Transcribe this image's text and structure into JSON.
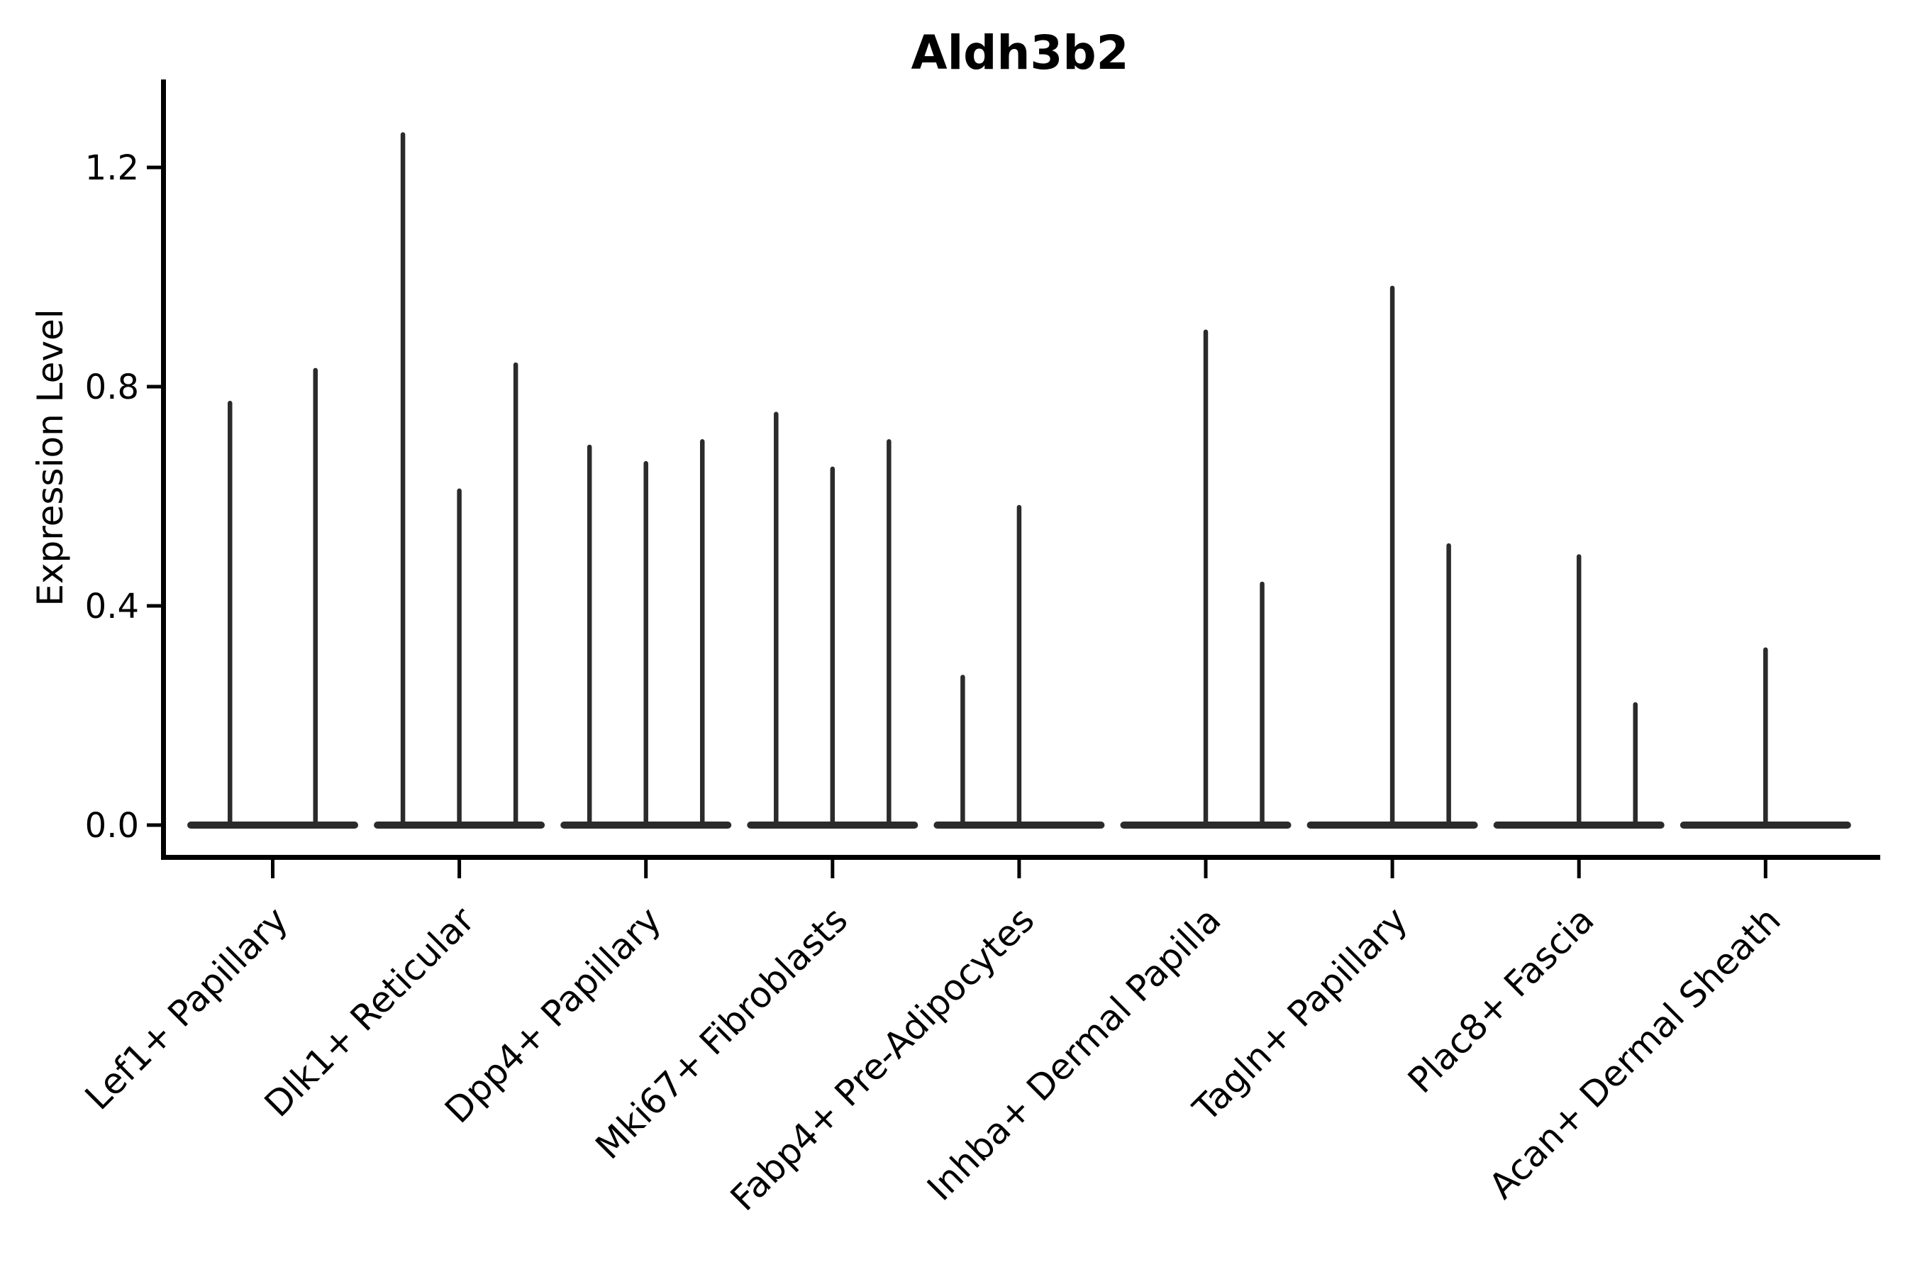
{
  "chart_data": {
    "type": "violin",
    "title": "Aldh3b2",
    "ylabel": "Expression Level",
    "xlabel": "",
    "legend": "none",
    "grid": false,
    "x_tick_rotation": 45,
    "ylim": [
      0.0,
      1.31
    ],
    "y_ticks": [
      0.0,
      0.4,
      0.8,
      1.2
    ],
    "y_tick_labels": [
      "0.0",
      "0.4",
      "0.8",
      "1.2"
    ],
    "ink_color": "#2b2b2b",
    "background_color": "#ffffff",
    "description": "Violin plot of Aldh3b2 expression; each category shows flat zero-density violins with thin spikes rising to the maximum expression of each sub-violin.",
    "categories": [
      {
        "label": "Lef1+ Papillary",
        "spikes": [
          {
            "pos": 0.25,
            "max": 0.77
          },
          {
            "pos": 0.75,
            "max": 0.83
          }
        ]
      },
      {
        "label": "Dlk1+ Reticular",
        "spikes": [
          {
            "pos": 0.17,
            "max": 1.26
          },
          {
            "pos": 0.5,
            "max": 0.61
          },
          {
            "pos": 0.83,
            "max": 0.84
          }
        ]
      },
      {
        "label": "Dpp4+ Papillary",
        "spikes": [
          {
            "pos": 0.17,
            "max": 0.69
          },
          {
            "pos": 0.5,
            "max": 0.66
          },
          {
            "pos": 0.83,
            "max": 0.7
          }
        ]
      },
      {
        "label": "Mki67+ Fibroblasts",
        "spikes": [
          {
            "pos": 0.17,
            "max": 0.75
          },
          {
            "pos": 0.5,
            "max": 0.65
          },
          {
            "pos": 0.83,
            "max": 0.7
          }
        ]
      },
      {
        "label": "Fabp4+ Pre-Adipocytes",
        "spikes": [
          {
            "pos": 0.17,
            "max": 0.27
          },
          {
            "pos": 0.5,
            "max": 0.58
          }
        ]
      },
      {
        "label": "Inhba+ Dermal Papilla",
        "spikes": [
          {
            "pos": 0.5,
            "max": 0.9
          },
          {
            "pos": 0.83,
            "max": 0.44
          }
        ]
      },
      {
        "label": "Tagln+ Papillary",
        "spikes": [
          {
            "pos": 0.5,
            "max": 0.98
          },
          {
            "pos": 0.83,
            "max": 0.51
          }
        ]
      },
      {
        "label": "Plac8+ Fascia",
        "spikes": [
          {
            "pos": 0.5,
            "max": 0.49
          },
          {
            "pos": 0.83,
            "max": 0.22
          }
        ]
      },
      {
        "label": "Acan+ Dermal Sheath",
        "spikes": [
          {
            "pos": 0.5,
            "max": 0.32
          }
        ]
      }
    ]
  }
}
